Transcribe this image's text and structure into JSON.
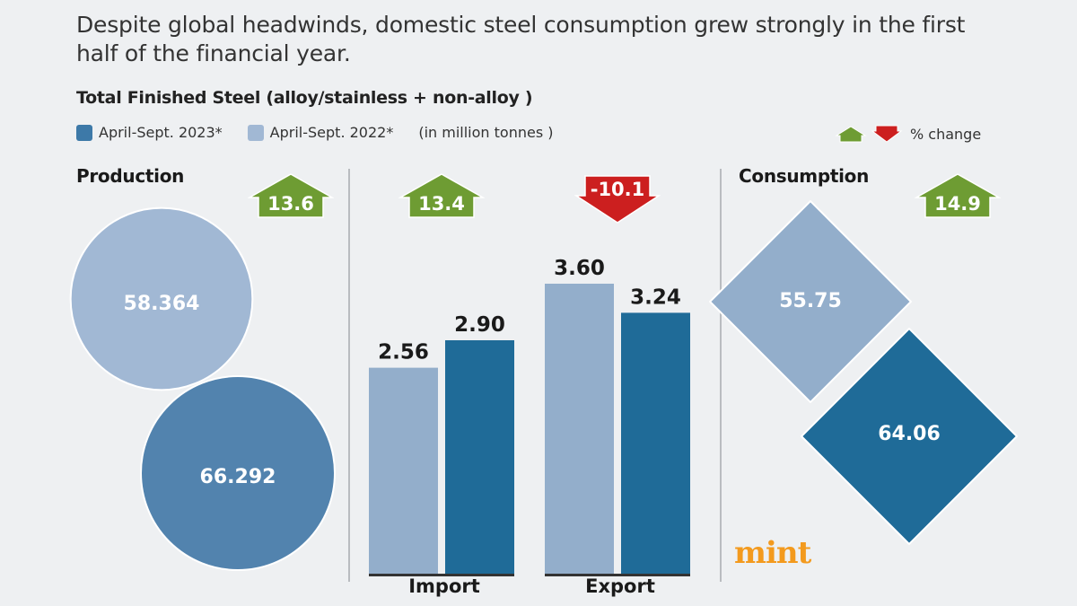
{
  "headline": "Despite global headwinds, domestic steel consumption grew strongly in the first half of the financial year.",
  "subtitle": "Total Finished Steel (alloy/stainless + non-alloy )",
  "legend": {
    "series_2023": "April-Sept. 2023*",
    "series_2022": "April-Sept. 2022*",
    "unit_note": "(in million tonnes )",
    "pct_change_label": "% change"
  },
  "colors": {
    "series_2023_bar": "#1f6b98",
    "series_2022_bar": "#93aecb",
    "series_2023_circle": "#5283ae",
    "series_2022_circle": "#a1b8d4",
    "increase": "#6e9c33",
    "decrease": "#cc1f1f",
    "background": "#eef0f2",
    "brand": "#f39a1e"
  },
  "sections": {
    "production": {
      "title": "Production",
      "change": "13.6",
      "direction": "up"
    },
    "import": {
      "title": "Import",
      "change": "13.4",
      "direction": "up"
    },
    "export": {
      "title": "Export",
      "change": "-10.1",
      "direction": "down"
    },
    "consumption": {
      "title": "Consumption",
      "change": "14.9",
      "direction": "up"
    }
  },
  "brand": "mint",
  "chart_data": {
    "type": "bar",
    "title": "Total Finished Steel (alloy/stainless + non-alloy )",
    "unit": "million tonnes",
    "categories": [
      "Production",
      "Import",
      "Export",
      "Consumption"
    ],
    "series": [
      {
        "name": "April-Sept. 2022*",
        "values": [
          58.364,
          2.56,
          3.6,
          55.75
        ],
        "labels": [
          "58.364",
          "2.56",
          "3.60",
          "55.75"
        ]
      },
      {
        "name": "April-Sept. 2023*",
        "values": [
          66.292,
          2.9,
          3.24,
          64.06
        ],
        "labels": [
          "66.292",
          "2.90",
          "3.24",
          "64.06"
        ]
      }
    ],
    "percent_change": [
      13.6,
      13.4,
      -10.1,
      14.9
    ],
    "mark_shapes": {
      "Production": "circle",
      "Import": "bar",
      "Export": "bar",
      "Consumption": "diamond"
    },
    "legend_position": "top-left",
    "grid": false
  }
}
